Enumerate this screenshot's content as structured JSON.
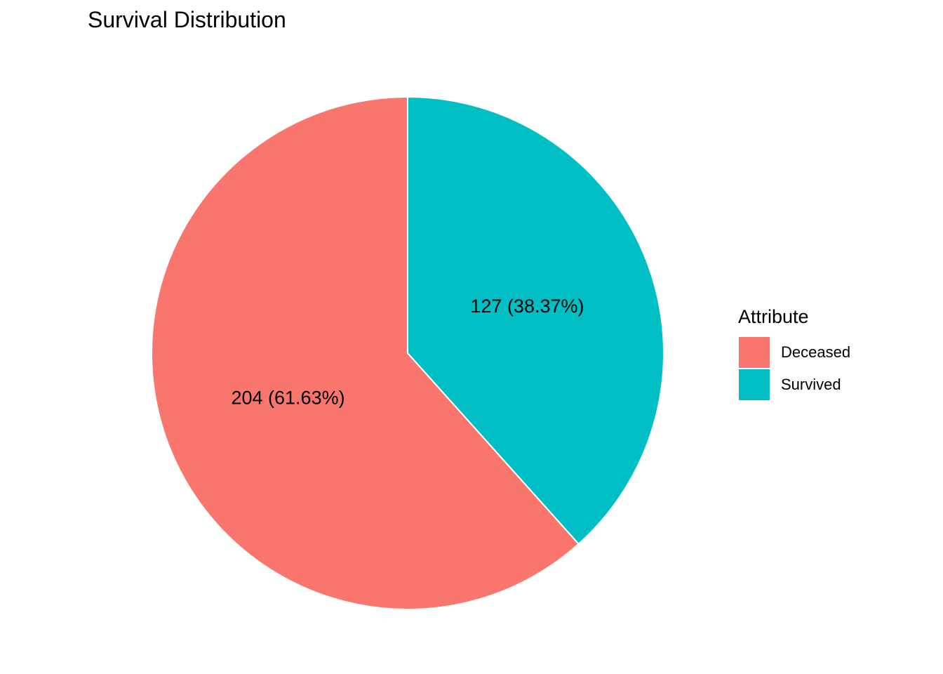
{
  "chart_data": {
    "type": "pie",
    "title": "Survival Distribution",
    "legend_title": "Attribute",
    "legend_position": "right",
    "slices": [
      {
        "label": "Deceased",
        "value": 204,
        "percent": 61.63,
        "data_label": "204 (61.63%)",
        "color": "#F8766D"
      },
      {
        "label": "Survived",
        "value": 127,
        "percent": 38.37,
        "data_label": "127 (38.37%)",
        "color": "#00BFC4"
      }
    ]
  },
  "legend": {
    "title": "Attribute",
    "items": [
      {
        "label": "Deceased",
        "color": "#F8766D"
      },
      {
        "label": "Survived",
        "color": "#00BFC4"
      }
    ]
  }
}
